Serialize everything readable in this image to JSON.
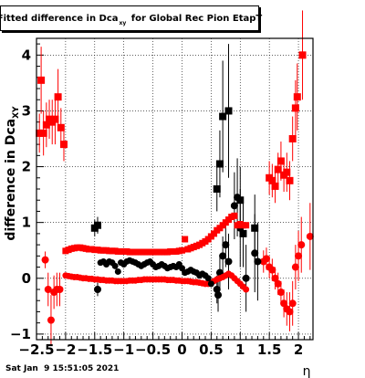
{
  "chart_data": {
    "type": "scatter",
    "title": "Fitted difference in Dca_xy  for Global Rec Pion EtapT",
    "title_parts": {
      "main": "Fitted difference in Dca",
      "sub": "xy",
      "rest": " for Global Rec Pion EtapT"
    },
    "xlabel": "η",
    "ylabel": "difference in Dca_XY",
    "ylabel_parts": {
      "main": "difference in Dca",
      "sub": "XY"
    },
    "xlim": [
      -2.5,
      2.25
    ],
    "ylim": [
      -1.1,
      4.3
    ],
    "x_ticks": [
      -2.5,
      -2,
      -1.5,
      -1,
      -0.5,
      0,
      0.5,
      1,
      1.5,
      2
    ],
    "x_tick_labels": [
      "−2.5",
      "−2",
      "−1.5",
      "−1",
      "−0.5",
      "0",
      "0.5",
      "1",
      "1.5",
      "2"
    ],
    "y_ticks": [
      -1,
      0,
      1,
      2,
      3,
      4
    ],
    "y_tick_labels": [
      "−1",
      "0",
      "1",
      "2",
      "3",
      "4"
    ],
    "grid": true,
    "series": [
      {
        "color": "#ff0000",
        "marker": "square",
        "points": [
          {
            "x": -2.45,
            "y": 2.6,
            "e": 0.35
          },
          {
            "x": -2.42,
            "y": 3.55,
            "e": 0.6
          },
          {
            "x": -2.38,
            "y": 2.6,
            "e": 0.4
          },
          {
            "x": -2.33,
            "y": 2.75,
            "e": 0.4
          },
          {
            "x": -2.28,
            "y": 2.85,
            "e": 0.35
          },
          {
            "x": -2.23,
            "y": 2.8,
            "e": 0.4
          },
          {
            "x": -2.18,
            "y": 2.85,
            "e": 0.45
          },
          {
            "x": -2.13,
            "y": 3.25,
            "e": 0.5
          },
          {
            "x": -2.08,
            "y": 2.7,
            "e": 0.35
          },
          {
            "x": -2.03,
            "y": 2.4,
            "e": 0.3
          },
          {
            "x": 1.5,
            "y": 1.8,
            "e": 0.3
          },
          {
            "x": 1.55,
            "y": 1.75,
            "e": 0.3
          },
          {
            "x": 1.6,
            "y": 1.65,
            "e": 0.3
          },
          {
            "x": 1.65,
            "y": 1.95,
            "e": 0.3
          },
          {
            "x": 1.7,
            "y": 2.1,
            "e": 0.35
          },
          {
            "x": 1.75,
            "y": 1.85,
            "e": 0.3
          },
          {
            "x": 1.8,
            "y": 1.9,
            "e": 0.35
          },
          {
            "x": 1.85,
            "y": 1.75,
            "e": 0.35
          },
          {
            "x": 1.9,
            "y": 2.5,
            "e": 0.4
          },
          {
            "x": 1.95,
            "y": 3.05,
            "e": 0.5
          },
          {
            "x": 1.98,
            "y": 3.25,
            "e": 0.6
          },
          {
            "x": 2.07,
            "y": 4.0,
            "e": 0.8
          }
        ]
      },
      {
        "color": "#ff0000",
        "marker": "circle",
        "points": [
          {
            "x": -2.35,
            "y": 0.33,
            "e": 0.15
          },
          {
            "x": -2.3,
            "y": -0.2,
            "e": 0.3
          },
          {
            "x": -2.25,
            "y": -0.75,
            "e": 0.45
          },
          {
            "x": -2.2,
            "y": -0.25,
            "e": 0.3
          },
          {
            "x": -2.15,
            "y": -0.2,
            "e": 0.3
          },
          {
            "x": -2.1,
            "y": -0.2,
            "e": 0.3
          },
          {
            "x": 1.4,
            "y": 0.3,
            "e": 0.2
          },
          {
            "x": 1.45,
            "y": 0.35,
            "e": 0.2
          },
          {
            "x": 1.5,
            "y": 0.2,
            "e": 0.2
          },
          {
            "x": 1.55,
            "y": 0.15,
            "e": 0.2
          },
          {
            "x": 1.6,
            "y": 0.0,
            "e": 0.2
          },
          {
            "x": 1.65,
            "y": -0.1,
            "e": 0.2
          },
          {
            "x": 1.7,
            "y": -0.25,
            "e": 0.2
          },
          {
            "x": 1.75,
            "y": -0.45,
            "e": 0.25
          },
          {
            "x": 1.8,
            "y": -0.55,
            "e": 0.3
          },
          {
            "x": 1.85,
            "y": -0.6,
            "e": 0.35
          },
          {
            "x": 1.9,
            "y": -0.45,
            "e": 0.4
          },
          {
            "x": 1.95,
            "y": 0.2,
            "e": 0.4
          },
          {
            "x": 2.0,
            "y": 0.4,
            "e": 0.45
          },
          {
            "x": 2.05,
            "y": 0.6,
            "e": 0.5
          },
          {
            "x": 2.2,
            "y": 0.75,
            "e": 0.6
          }
        ]
      },
      {
        "color": "#000000",
        "marker": "square",
        "points": [
          {
            "x": -1.5,
            "y": 0.9,
            "e": 0.15
          },
          {
            "x": -1.45,
            "y": 0.95,
            "e": 0.15
          },
          {
            "x": 0.6,
            "y": 1.6,
            "e": 0.4
          },
          {
            "x": 0.65,
            "y": 2.05,
            "e": 0.6
          },
          {
            "x": 0.7,
            "y": 2.9,
            "e": 1.0
          },
          {
            "x": 0.8,
            "y": 3.0,
            "e": 1.2
          },
          {
            "x": 1.0,
            "y": 1.4,
            "e": 0.6
          },
          {
            "x": 1.05,
            "y": 0.8,
            "e": 0.6
          },
          {
            "x": 1.25,
            "y": 0.9,
            "e": 0.6
          }
        ]
      },
      {
        "color": "#000000",
        "marker": "circle",
        "points": [
          {
            "x": -1.45,
            "y": -0.2,
            "e": 0.12
          },
          {
            "x": 0.6,
            "y": -0.2,
            "e": 0.25
          },
          {
            "x": 0.62,
            "y": -0.3,
            "e": 0.3
          },
          {
            "x": 0.65,
            "y": 0.1,
            "e": 0.3
          },
          {
            "x": 0.7,
            "y": 0.4,
            "e": 0.35
          },
          {
            "x": 0.75,
            "y": 0.6,
            "e": 0.4
          },
          {
            "x": 0.8,
            "y": 0.3,
            "e": 0.5
          },
          {
            "x": 0.9,
            "y": 1.3,
            "e": 0.6
          },
          {
            "x": 0.95,
            "y": 1.45,
            "e": 0.7
          },
          {
            "x": 1.0,
            "y": 0.9,
            "e": 0.7
          },
          {
            "x": 1.1,
            "y": 0.0,
            "e": 0.6
          },
          {
            "x": 1.25,
            "y": 0.45,
            "e": 0.7
          },
          {
            "x": 1.3,
            "y": 0.3,
            "e": 0.7
          }
        ]
      },
      {
        "color": "#ff0000",
        "marker": "square",
        "band": true,
        "points": [
          {
            "x": -2.0,
            "y": 0.49
          },
          {
            "x": -1.95,
            "y": 0.51
          },
          {
            "x": -1.9,
            "y": 0.53
          },
          {
            "x": -1.85,
            "y": 0.54
          },
          {
            "x": -1.8,
            "y": 0.55
          },
          {
            "x": -1.75,
            "y": 0.55
          },
          {
            "x": -1.7,
            "y": 0.54
          },
          {
            "x": -1.65,
            "y": 0.53
          },
          {
            "x": -1.6,
            "y": 0.52
          },
          {
            "x": -1.55,
            "y": 0.52
          },
          {
            "x": -1.5,
            "y": 0.51
          },
          {
            "x": -1.45,
            "y": 0.51
          },
          {
            "x": -1.4,
            "y": 0.5
          },
          {
            "x": -1.35,
            "y": 0.5
          },
          {
            "x": -1.3,
            "y": 0.5
          },
          {
            "x": -1.25,
            "y": 0.49
          },
          {
            "x": -1.2,
            "y": 0.49
          },
          {
            "x": -1.15,
            "y": 0.49
          },
          {
            "x": -1.1,
            "y": 0.48
          },
          {
            "x": -1.05,
            "y": 0.48
          },
          {
            "x": -1.0,
            "y": 0.48
          },
          {
            "x": -0.95,
            "y": 0.48
          },
          {
            "x": -0.9,
            "y": 0.47
          },
          {
            "x": -0.85,
            "y": 0.47
          },
          {
            "x": -0.8,
            "y": 0.47
          },
          {
            "x": -0.75,
            "y": 0.47
          },
          {
            "x": -0.7,
            "y": 0.47
          },
          {
            "x": -0.65,
            "y": 0.47
          },
          {
            "x": -0.6,
            "y": 0.47
          },
          {
            "x": -0.55,
            "y": 0.47
          },
          {
            "x": -0.5,
            "y": 0.47
          },
          {
            "x": -0.45,
            "y": 0.47
          },
          {
            "x": -0.4,
            "y": 0.47
          },
          {
            "x": -0.35,
            "y": 0.47
          },
          {
            "x": -0.3,
            "y": 0.47
          },
          {
            "x": -0.25,
            "y": 0.47
          },
          {
            "x": -0.2,
            "y": 0.48
          },
          {
            "x": -0.15,
            "y": 0.48
          },
          {
            "x": -0.1,
            "y": 0.48
          },
          {
            "x": -0.05,
            "y": 0.49
          },
          {
            "x": 0.0,
            "y": 0.5
          },
          {
            "x": 0.05,
            "y": 0.7
          },
          {
            "x": 0.1,
            "y": 0.52
          },
          {
            "x": 0.15,
            "y": 0.54
          },
          {
            "x": 0.2,
            "y": 0.56
          },
          {
            "x": 0.25,
            "y": 0.58
          },
          {
            "x": 0.3,
            "y": 0.6
          },
          {
            "x": 0.35,
            "y": 0.63
          },
          {
            "x": 0.4,
            "y": 0.66
          },
          {
            "x": 0.45,
            "y": 0.7
          },
          {
            "x": 0.5,
            "y": 0.75
          },
          {
            "x": 0.55,
            "y": 0.8
          },
          {
            "x": 0.6,
            "y": 0.86
          },
          {
            "x": 0.65,
            "y": 0.9
          },
          {
            "x": 0.7,
            "y": 0.95
          },
          {
            "x": 0.75,
            "y": 1.0
          },
          {
            "x": 0.8,
            "y": 1.05
          },
          {
            "x": 0.85,
            "y": 1.1
          },
          {
            "x": 0.9,
            "y": 1.12
          },
          {
            "x": 0.95,
            "y": 0.95
          },
          {
            "x": 1.0,
            "y": 0.97
          },
          {
            "x": 1.05,
            "y": 0.95
          },
          {
            "x": 1.1,
            "y": 0.95
          }
        ]
      },
      {
        "color": "#ff0000",
        "marker": "circle",
        "band": true,
        "points": [
          {
            "x": -2.0,
            "y": 0.05
          },
          {
            "x": -1.95,
            "y": 0.04
          },
          {
            "x": -1.9,
            "y": 0.03
          },
          {
            "x": -1.85,
            "y": 0.02
          },
          {
            "x": -1.8,
            "y": 0.02
          },
          {
            "x": -1.75,
            "y": 0.01
          },
          {
            "x": -1.7,
            "y": 0.0
          },
          {
            "x": -1.65,
            "y": 0.0
          },
          {
            "x": -1.6,
            "y": -0.01
          },
          {
            "x": -1.55,
            "y": -0.01
          },
          {
            "x": -1.5,
            "y": -0.02
          },
          {
            "x": -1.45,
            "y": -0.02
          },
          {
            "x": -1.4,
            "y": -0.03
          },
          {
            "x": -1.35,
            "y": -0.03
          },
          {
            "x": -1.3,
            "y": -0.04
          },
          {
            "x": -1.25,
            "y": -0.04
          },
          {
            "x": -1.2,
            "y": -0.04
          },
          {
            "x": -1.15,
            "y": -0.05
          },
          {
            "x": -1.1,
            "y": -0.05
          },
          {
            "x": -1.05,
            "y": -0.05
          },
          {
            "x": -1.0,
            "y": -0.05
          },
          {
            "x": -0.95,
            "y": -0.05
          },
          {
            "x": -0.9,
            "y": -0.04
          },
          {
            "x": -0.85,
            "y": -0.04
          },
          {
            "x": -0.8,
            "y": -0.04
          },
          {
            "x": -0.75,
            "y": -0.03
          },
          {
            "x": -0.7,
            "y": -0.03
          },
          {
            "x": -0.65,
            "y": -0.02
          },
          {
            "x": -0.6,
            "y": -0.02
          },
          {
            "x": -0.55,
            "y": -0.02
          },
          {
            "x": -0.5,
            "y": -0.02
          },
          {
            "x": -0.45,
            "y": -0.02
          },
          {
            "x": -0.4,
            "y": -0.02
          },
          {
            "x": -0.35,
            "y": -0.02
          },
          {
            "x": -0.3,
            "y": -0.02
          },
          {
            "x": -0.25,
            "y": -0.03
          },
          {
            "x": -0.2,
            "y": -0.03
          },
          {
            "x": -0.15,
            "y": -0.03
          },
          {
            "x": -0.1,
            "y": -0.04
          },
          {
            "x": -0.05,
            "y": -0.04
          },
          {
            "x": 0.0,
            "y": -0.05
          },
          {
            "x": 0.05,
            "y": -0.05
          },
          {
            "x": 0.1,
            "y": -0.05
          },
          {
            "x": 0.15,
            "y": -0.06
          },
          {
            "x": 0.2,
            "y": -0.07
          },
          {
            "x": 0.25,
            "y": -0.07
          },
          {
            "x": 0.3,
            "y": -0.08
          },
          {
            "x": 0.35,
            "y": -0.09
          },
          {
            "x": 0.4,
            "y": -0.1
          },
          {
            "x": 0.45,
            "y": -0.1
          },
          {
            "x": 0.5,
            "y": -0.08
          },
          {
            "x": 0.55,
            "y": -0.05
          },
          {
            "x": 0.6,
            "y": -0.02
          },
          {
            "x": 0.65,
            "y": 0.0
          },
          {
            "x": 0.7,
            "y": 0.02
          },
          {
            "x": 0.75,
            "y": 0.05
          },
          {
            "x": 0.8,
            "y": 0.08
          },
          {
            "x": 0.85,
            "y": 0.05
          },
          {
            "x": 0.9,
            "y": 0.0
          },
          {
            "x": 0.95,
            "y": -0.05
          },
          {
            "x": 1.0,
            "y": -0.1
          },
          {
            "x": 1.05,
            "y": -0.15
          },
          {
            "x": 1.1,
            "y": -0.2
          }
        ]
      },
      {
        "color": "#000000",
        "marker": "circle",
        "band": true,
        "points": [
          {
            "x": -1.4,
            "y": 0.28
          },
          {
            "x": -1.35,
            "y": 0.3
          },
          {
            "x": -1.3,
            "y": 0.25
          },
          {
            "x": -1.25,
            "y": 0.3
          },
          {
            "x": -1.2,
            "y": 0.28
          },
          {
            "x": -1.15,
            "y": 0.22
          },
          {
            "x": -1.1,
            "y": 0.12
          },
          {
            "x": -1.05,
            "y": 0.28
          },
          {
            "x": -1.0,
            "y": 0.25
          },
          {
            "x": -0.95,
            "y": 0.3
          },
          {
            "x": -0.9,
            "y": 0.32
          },
          {
            "x": -0.85,
            "y": 0.3
          },
          {
            "x": -0.8,
            "y": 0.28
          },
          {
            "x": -0.75,
            "y": 0.25
          },
          {
            "x": -0.7,
            "y": 0.22
          },
          {
            "x": -0.65,
            "y": 0.25
          },
          {
            "x": -0.6,
            "y": 0.28
          },
          {
            "x": -0.55,
            "y": 0.3
          },
          {
            "x": -0.5,
            "y": 0.25
          },
          {
            "x": -0.45,
            "y": 0.2
          },
          {
            "x": -0.4,
            "y": 0.22
          },
          {
            "x": -0.35,
            "y": 0.25
          },
          {
            "x": -0.3,
            "y": 0.22
          },
          {
            "x": -0.25,
            "y": 0.18
          },
          {
            "x": -0.2,
            "y": 0.2
          },
          {
            "x": -0.15,
            "y": 0.22
          },
          {
            "x": -0.1,
            "y": 0.2
          },
          {
            "x": -0.05,
            "y": 0.25
          },
          {
            "x": 0.0,
            "y": 0.18
          },
          {
            "x": 0.05,
            "y": 0.1
          },
          {
            "x": 0.1,
            "y": 0.12
          },
          {
            "x": 0.15,
            "y": 0.15
          },
          {
            "x": 0.2,
            "y": 0.12
          },
          {
            "x": 0.25,
            "y": 0.1
          },
          {
            "x": 0.3,
            "y": 0.05
          },
          {
            "x": 0.35,
            "y": 0.08
          },
          {
            "x": 0.4,
            "y": 0.05
          },
          {
            "x": 0.45,
            "y": 0.0
          },
          {
            "x": 0.5,
            "y": -0.1
          }
        ]
      }
    ]
  },
  "footer": {
    "timestamp": "Sat Jan  9 15:51:05 2021"
  }
}
